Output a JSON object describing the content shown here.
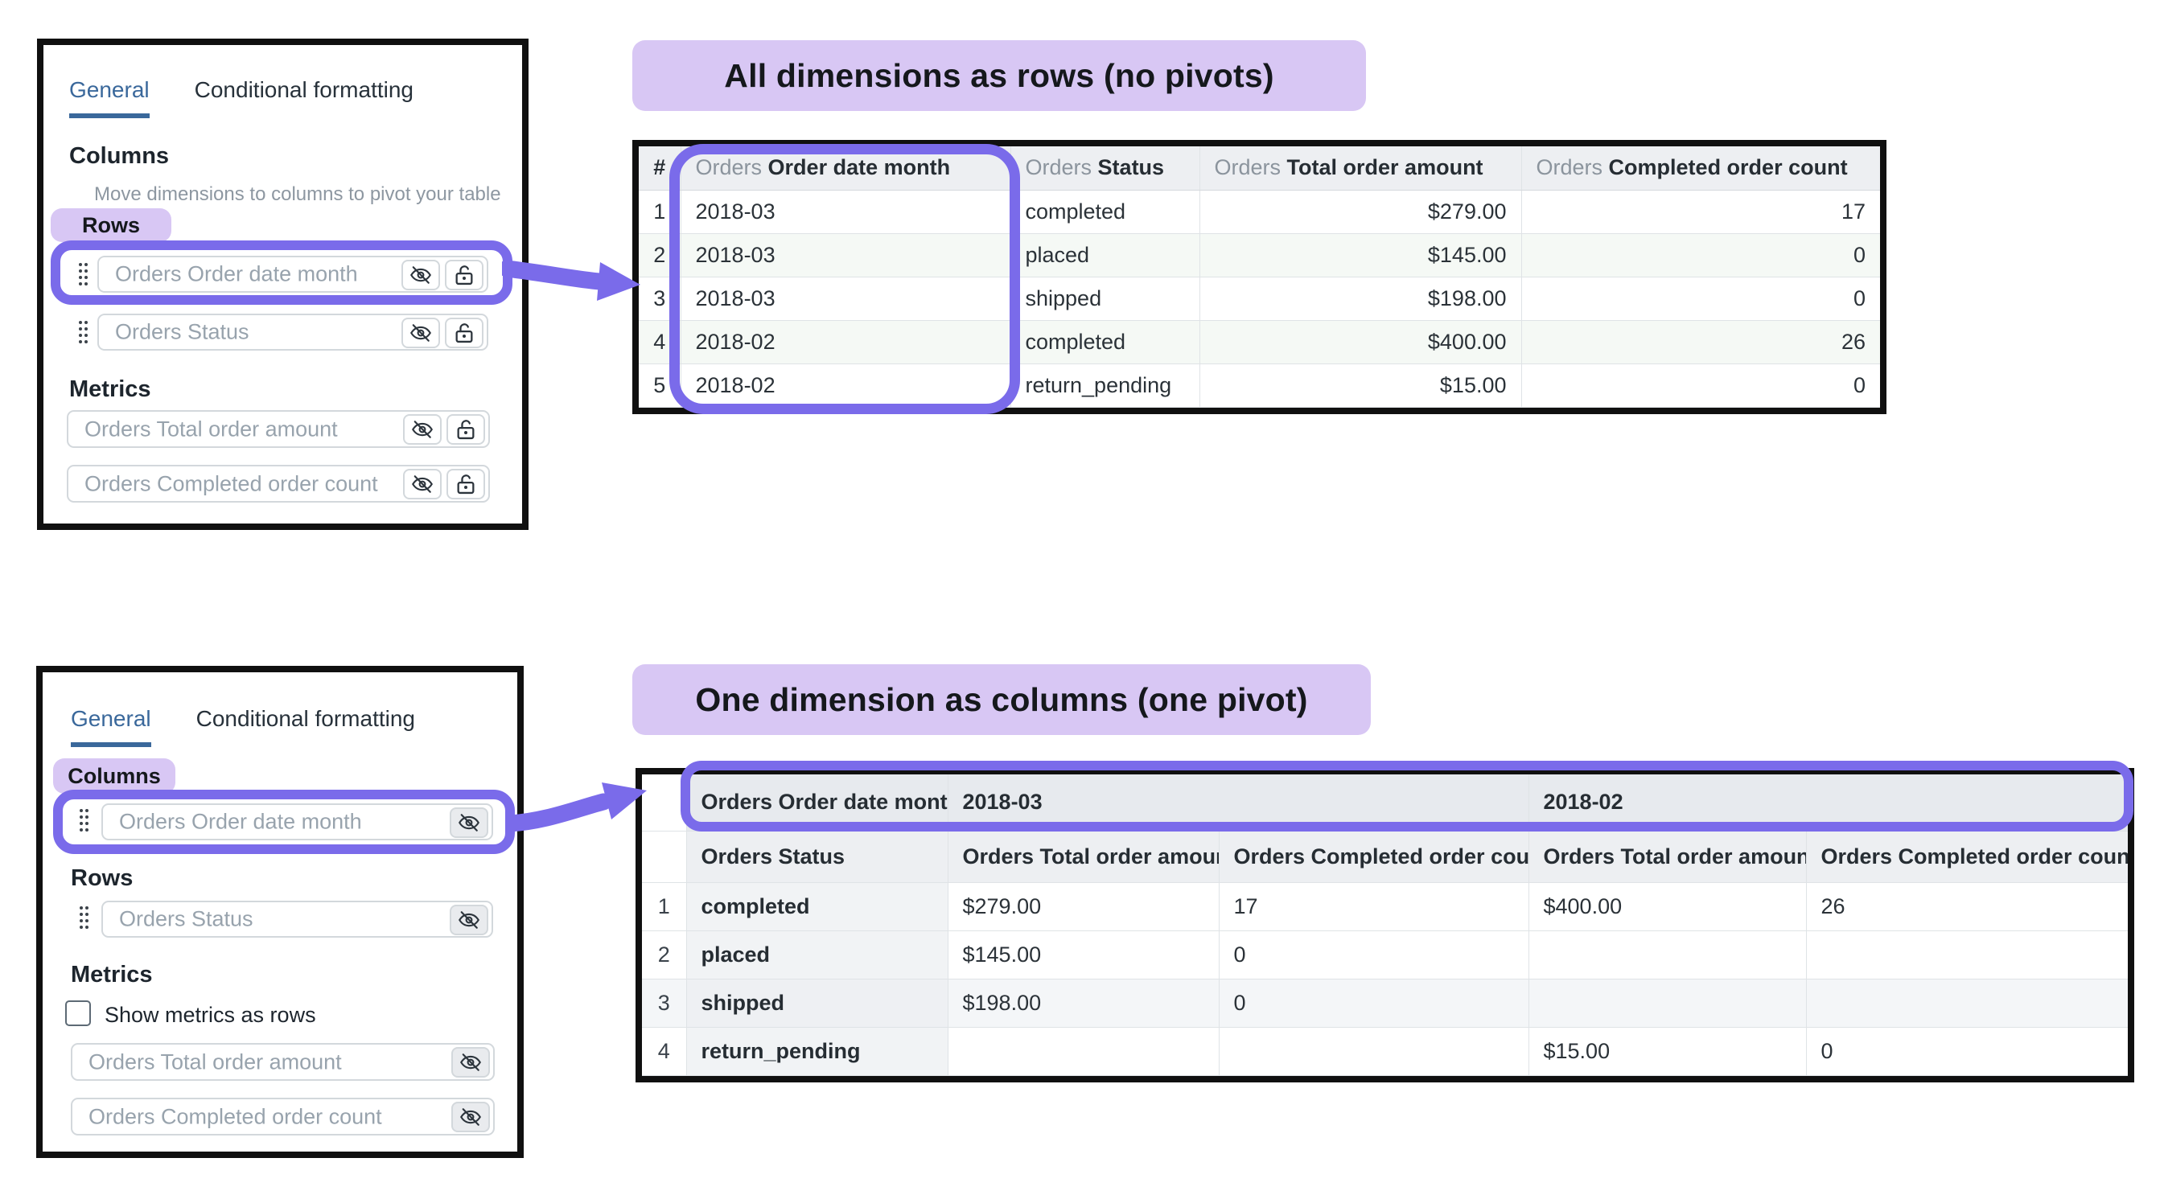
{
  "accent_colors": {
    "highlight_purple": "#7a6bea",
    "lavender_banner": "#d8c7f4",
    "active_tab_blue": "#3a689b"
  },
  "section_top": {
    "banner": "All dimensions as rows (no pivots)",
    "panel": {
      "tabs": [
        "General",
        "Conditional formatting"
      ],
      "active_tab": "General",
      "columns_heading": "Columns",
      "columns_hint": "Move dimensions to columns to pivot your table",
      "rows_heading": "Rows",
      "row_fields": [
        "Orders Order date month",
        "Orders Status"
      ],
      "metrics_heading": "Metrics",
      "metric_fields": [
        "Orders Total order amount",
        "Orders Completed order count"
      ]
    },
    "table": {
      "header": [
        {
          "prefix": "",
          "name": "#"
        },
        {
          "prefix": "Orders",
          "name": "Order date month"
        },
        {
          "prefix": "Orders",
          "name": "Status"
        },
        {
          "prefix": "Orders",
          "name": "Total order amount"
        },
        {
          "prefix": "Orders",
          "name": "Completed order count"
        }
      ],
      "rows": [
        [
          "1",
          "2018-03",
          "completed",
          "$279.00",
          "17"
        ],
        [
          "2",
          "2018-03",
          "placed",
          "$145.00",
          "0"
        ],
        [
          "3",
          "2018-03",
          "shipped",
          "$198.00",
          "0"
        ],
        [
          "4",
          "2018-02",
          "completed",
          "$400.00",
          "26"
        ],
        [
          "5",
          "2018-02",
          "return_pending",
          "$15.00",
          "0"
        ]
      ]
    }
  },
  "section_bottom": {
    "banner": "One dimension as columns (one pivot)",
    "panel": {
      "tabs": [
        "General",
        "Conditional formatting"
      ],
      "active_tab": "General",
      "columns_heading": "Columns",
      "column_fields": [
        "Orders Order date month"
      ],
      "rows_heading": "Rows",
      "row_fields": [
        "Orders Status"
      ],
      "metrics_heading": "Metrics",
      "show_metrics_checkbox_label": "Show metrics as rows",
      "metric_fields": [
        "Orders Total order amount",
        "Orders Completed order count"
      ]
    },
    "table": {
      "pivot_header_label": "Orders Order date month",
      "pivot_values": [
        "2018-03",
        "2018-02"
      ],
      "sub_headers": [
        "Orders Status",
        "Orders Total order amount",
        "Orders Completed order count",
        "Orders Total order amount",
        "Orders Completed order count"
      ],
      "rows": [
        [
          "1",
          "completed",
          "$279.00",
          "17",
          "$400.00",
          "26"
        ],
        [
          "2",
          "placed",
          "$145.00",
          "0",
          "",
          ""
        ],
        [
          "3",
          "shipped",
          "$198.00",
          "0",
          "",
          ""
        ],
        [
          "4",
          "return_pending",
          "",
          "",
          "$15.00",
          "0"
        ]
      ]
    }
  }
}
